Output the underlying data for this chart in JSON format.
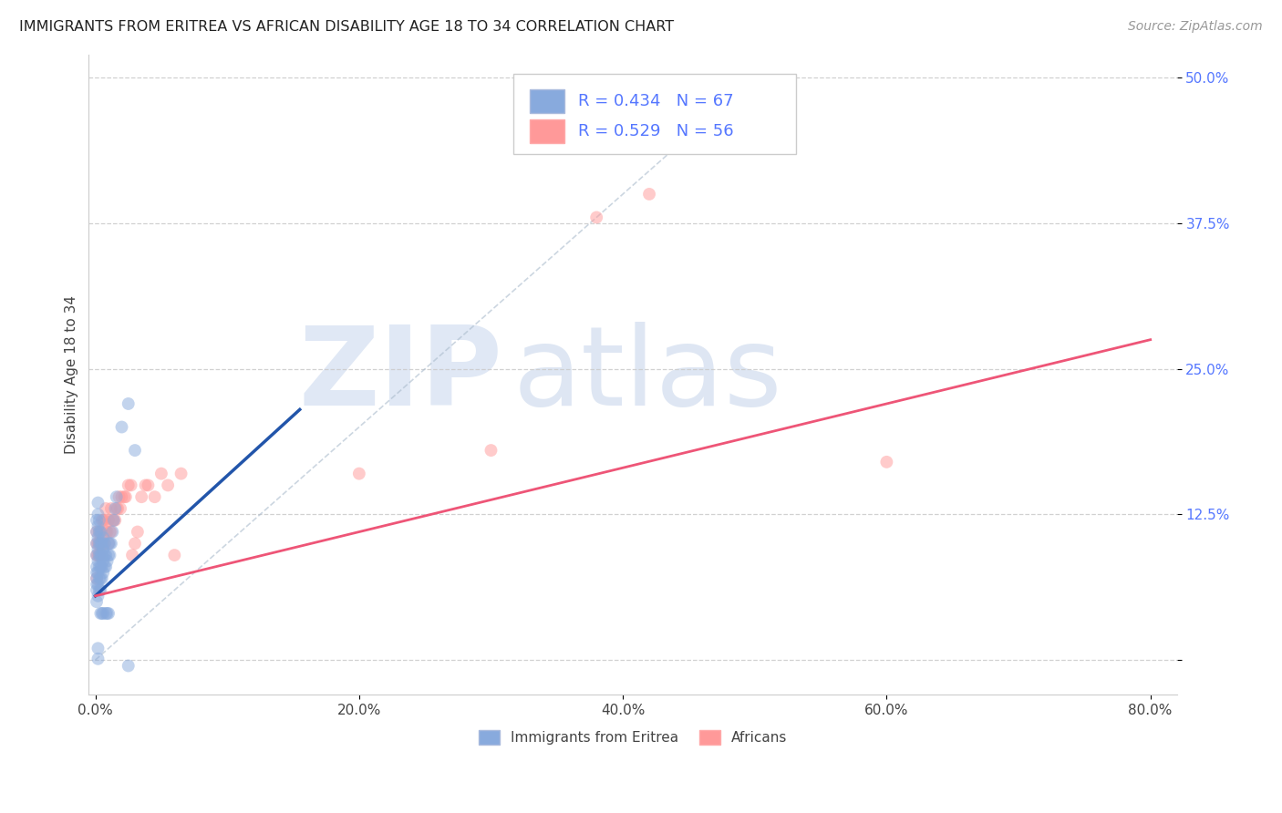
{
  "title": "IMMIGRANTS FROM ERITREA VS AFRICAN DISABILITY AGE 18 TO 34 CORRELATION CHART",
  "source": "Source: ZipAtlas.com",
  "ylabel": "Disability Age 18 to 34",
  "legend_label1": "Immigrants from Eritrea",
  "legend_label2": "Africans",
  "R1": 0.434,
  "N1": 67,
  "R2": 0.529,
  "N2": 56,
  "xlim": [
    -0.005,
    0.82
  ],
  "ylim": [
    -0.03,
    0.52
  ],
  "xticks": [
    0.0,
    0.2,
    0.4,
    0.6,
    0.8
  ],
  "yticks": [
    0.0,
    0.125,
    0.25,
    0.375,
    0.5
  ],
  "xticklabels": [
    "0.0%",
    "20.0%",
    "40.0%",
    "60.0%",
    "80.0%"
  ],
  "yticklabels": [
    "",
    "12.5%",
    "25.0%",
    "37.5%",
    "50.0%"
  ],
  "color_blue": "#88AADD",
  "color_pink": "#FF9999",
  "color_blue_line": "#2255AA",
  "color_pink_line": "#EE5577",
  "color_tick_labels": "#5577FF",
  "background_color": "#FFFFFF",
  "blue_scatter_x": [
    0.001,
    0.001,
    0.001,
    0.001,
    0.001,
    0.001,
    0.001,
    0.001,
    0.001,
    0.001,
    0.002,
    0.002,
    0.002,
    0.002,
    0.002,
    0.002,
    0.002,
    0.002,
    0.002,
    0.002,
    0.003,
    0.003,
    0.003,
    0.003,
    0.003,
    0.003,
    0.003,
    0.004,
    0.004,
    0.004,
    0.004,
    0.004,
    0.004,
    0.004,
    0.005,
    0.005,
    0.005,
    0.005,
    0.005,
    0.006,
    0.006,
    0.006,
    0.006,
    0.006,
    0.007,
    0.007,
    0.007,
    0.008,
    0.008,
    0.008,
    0.009,
    0.009,
    0.01,
    0.01,
    0.01,
    0.011,
    0.011,
    0.012,
    0.013,
    0.014,
    0.015,
    0.016,
    0.02,
    0.025,
    0.03,
    0.025,
    0.002
  ],
  "blue_scatter_y": [
    0.05,
    0.06,
    0.07,
    0.08,
    0.09,
    0.1,
    0.11,
    0.12,
    0.065,
    0.075,
    0.055,
    0.065,
    0.075,
    0.085,
    0.095,
    0.105,
    0.115,
    0.125,
    0.135,
    0.01,
    0.06,
    0.07,
    0.08,
    0.09,
    0.1,
    0.11,
    0.12,
    0.06,
    0.07,
    0.08,
    0.09,
    0.1,
    0.11,
    0.04,
    0.07,
    0.08,
    0.09,
    0.1,
    0.04,
    0.075,
    0.085,
    0.095,
    0.105,
    0.04,
    0.08,
    0.09,
    0.1,
    0.08,
    0.09,
    0.04,
    0.085,
    0.04,
    0.09,
    0.1,
    0.04,
    0.09,
    0.1,
    0.1,
    0.11,
    0.12,
    0.13,
    0.14,
    0.2,
    0.22,
    0.18,
    -0.005,
    0.001
  ],
  "pink_scatter_x": [
    0.001,
    0.001,
    0.001,
    0.001,
    0.002,
    0.002,
    0.003,
    0.003,
    0.003,
    0.004,
    0.004,
    0.004,
    0.005,
    0.005,
    0.005,
    0.006,
    0.006,
    0.007,
    0.007,
    0.008,
    0.008,
    0.009,
    0.01,
    0.01,
    0.011,
    0.012,
    0.012,
    0.013,
    0.014,
    0.015,
    0.016,
    0.017,
    0.018,
    0.019,
    0.02,
    0.022,
    0.023,
    0.025,
    0.027,
    0.028,
    0.03,
    0.032,
    0.035,
    0.038,
    0.04,
    0.045,
    0.05,
    0.055,
    0.06,
    0.065,
    0.2,
    0.3,
    0.38,
    0.42,
    0.48,
    0.6
  ],
  "pink_scatter_y": [
    0.07,
    0.09,
    0.1,
    0.11,
    0.09,
    0.1,
    0.09,
    0.1,
    0.11,
    0.09,
    0.1,
    0.11,
    0.09,
    0.1,
    0.12,
    0.1,
    0.12,
    0.1,
    0.12,
    0.11,
    0.13,
    0.11,
    0.1,
    0.12,
    0.11,
    0.11,
    0.13,
    0.12,
    0.12,
    0.12,
    0.13,
    0.13,
    0.14,
    0.13,
    0.14,
    0.14,
    0.14,
    0.15,
    0.15,
    0.09,
    0.1,
    0.11,
    0.14,
    0.15,
    0.15,
    0.14,
    0.16,
    0.15,
    0.09,
    0.16,
    0.16,
    0.18,
    0.38,
    0.4,
    0.44,
    0.17
  ],
  "blue_line_x": [
    0.0,
    0.155
  ],
  "blue_line_y": [
    0.055,
    0.215
  ],
  "pink_line_x": [
    0.0,
    0.8
  ],
  "pink_line_y": [
    0.055,
    0.275
  ],
  "diag_line_x": [
    0.0,
    0.5
  ],
  "diag_line_y": [
    0.0,
    0.5
  ]
}
